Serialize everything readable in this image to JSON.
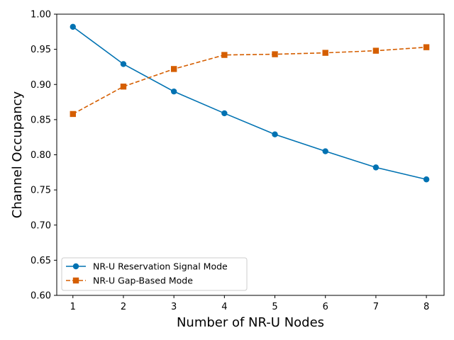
{
  "chart_data": {
    "type": "line",
    "title": "",
    "xlabel": "Number of NR-U Nodes",
    "ylabel": "Channel Occupancy",
    "x": [
      1,
      2,
      3,
      4,
      5,
      6,
      7,
      8
    ],
    "xlim": [
      0.68,
      8.35
    ],
    "ylim": [
      0.6,
      1.0
    ],
    "xticks": [
      "1",
      "2",
      "3",
      "4",
      "5",
      "6",
      "7",
      "8"
    ],
    "yticks": [
      "0.60",
      "0.65",
      "0.70",
      "0.75",
      "0.80",
      "0.85",
      "0.90",
      "0.95",
      "1.00"
    ],
    "grid": false,
    "legend_position": "lower-left",
    "series": [
      {
        "name": "NR-U Reservation Signal Mode",
        "values": [
          0.982,
          0.929,
          0.89,
          0.859,
          0.829,
          0.805,
          0.782,
          0.765
        ],
        "color": "#0072b2",
        "line_style": "solid",
        "marker": "circle"
      },
      {
        "name": "NR-U Gap-Based Mode",
        "values": [
          0.858,
          0.897,
          0.922,
          0.942,
          0.943,
          0.945,
          0.948,
          0.953
        ],
        "color": "#d55e00",
        "line_style": "dashed",
        "marker": "square"
      }
    ]
  }
}
